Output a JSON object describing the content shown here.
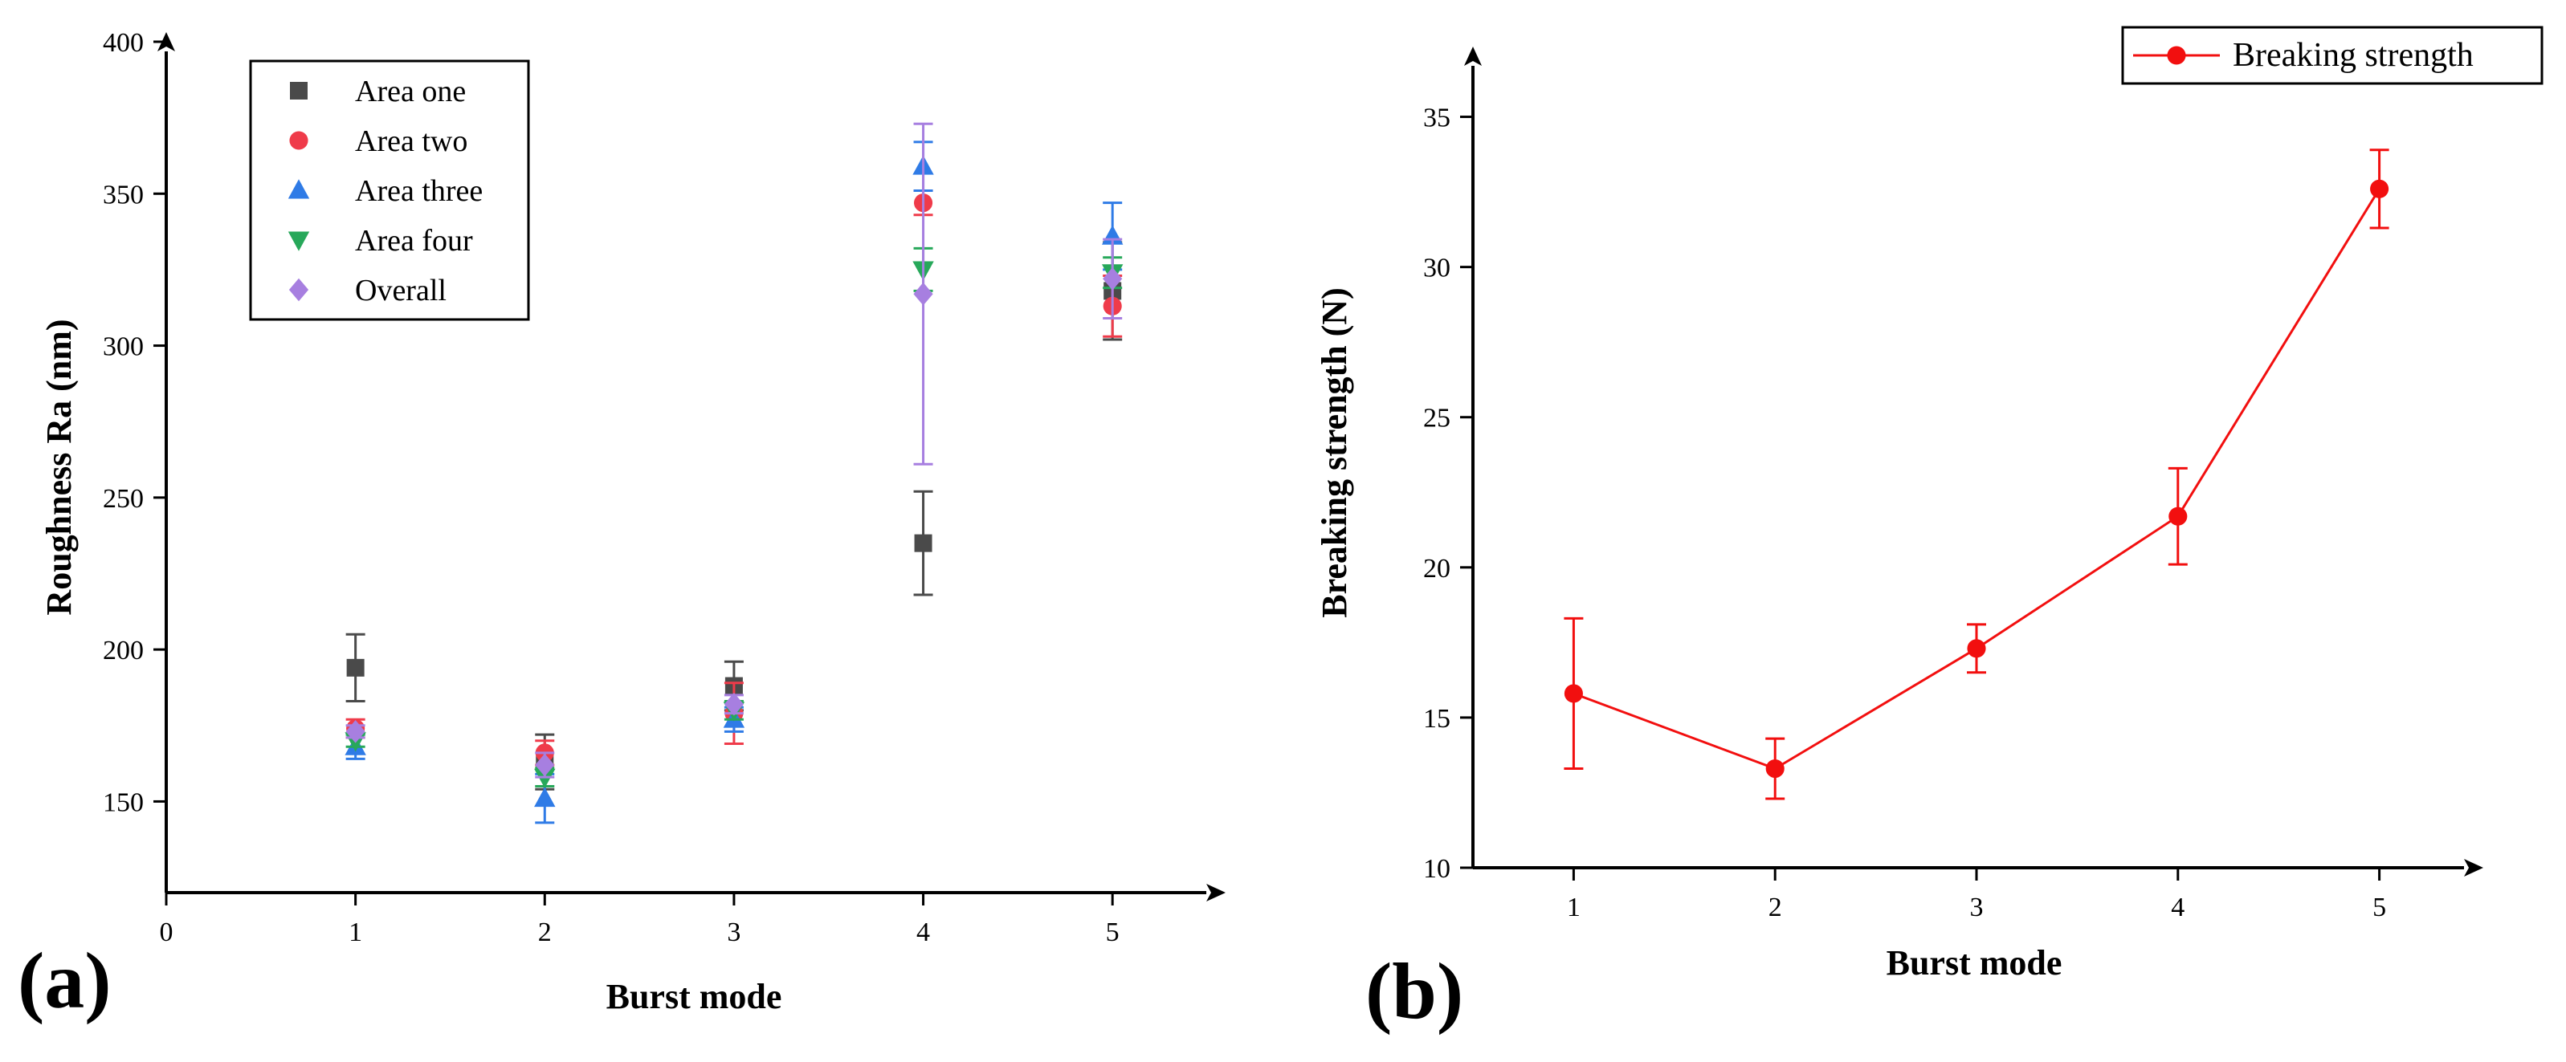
{
  "panels": {
    "a_label": "(a)",
    "b_label": "(b)"
  },
  "colors": {
    "area_one": "#4a4a4a",
    "area_two": "#ef3b4a",
    "area_three": "#2f7be6",
    "area_four": "#27a85a",
    "overall": "#a77fe0",
    "breaking": "#f20f0f",
    "axis": "#000000"
  },
  "chart_data": [
    {
      "type": "scatter",
      "panel": "(a)",
      "title": "",
      "xlabel": "Burst mode",
      "ylabel": "Roughness Ra (nm)",
      "xlim": [
        0,
        5.5
      ],
      "ylim": [
        120,
        400
      ],
      "xticks": [
        "0",
        "1",
        "2",
        "3",
        "4",
        "5"
      ],
      "yticks": [
        "150",
        "200",
        "250",
        "300",
        "350",
        "400"
      ],
      "grid": false,
      "legend_position": "top-left",
      "series": [
        {
          "name": "Area one",
          "marker": "square",
          "color_key": "area_one",
          "x": [
            1,
            2,
            3,
            4,
            5
          ],
          "y": [
            194,
            163,
            188,
            235,
            318
          ],
          "err": [
            11,
            9,
            8,
            17,
            16
          ]
        },
        {
          "name": "Area two",
          "marker": "circle",
          "color_key": "area_two",
          "x": [
            1,
            2,
            3,
            4,
            5
          ],
          "y": [
            174,
            166,
            179,
            347,
            313
          ],
          "err": [
            3,
            4,
            10,
            4,
            10
          ]
        },
        {
          "name": "Area three",
          "marker": "triangle-up",
          "color_key": "area_three",
          "x": [
            1,
            2,
            3,
            4,
            5
          ],
          "y": [
            168,
            151,
            177,
            359,
            336
          ],
          "err": [
            4,
            8,
            4,
            8,
            11
          ]
        },
        {
          "name": "Area four",
          "marker": "triangle-down",
          "color_key": "area_four",
          "x": [
            1,
            2,
            3,
            4,
            5
          ],
          "y": [
            170,
            158,
            180,
            325,
            324
          ],
          "err": [
            2,
            3,
            3,
            7,
            5
          ]
        },
        {
          "name": "Overall",
          "marker": "diamond",
          "color_key": "overall",
          "x": [
            1,
            2,
            3,
            4,
            5
          ],
          "y": [
            173,
            162,
            182,
            317,
            322
          ],
          "err": [
            2,
            4,
            3,
            56,
            13
          ]
        }
      ]
    },
    {
      "type": "line",
      "panel": "(b)",
      "title": "",
      "xlabel": "Burst mode",
      "ylabel": "Breaking strength (N)",
      "xlim": [
        0.5,
        5.5
      ],
      "ylim": [
        10,
        37.5
      ],
      "xticks": [
        "1",
        "2",
        "3",
        "4",
        "5"
      ],
      "yticks": [
        "10",
        "15",
        "20",
        "25",
        "30",
        "35"
      ],
      "grid": false,
      "legend_position": "top-right",
      "series": [
        {
          "name": "Breaking strength",
          "marker": "circle",
          "color_key": "breaking",
          "x": [
            1,
            2,
            3,
            4,
            5
          ],
          "y": [
            15.8,
            13.3,
            17.3,
            21.7,
            32.6
          ],
          "err": [
            2.5,
            1.0,
            0.8,
            1.6,
            1.3
          ]
        }
      ]
    }
  ]
}
